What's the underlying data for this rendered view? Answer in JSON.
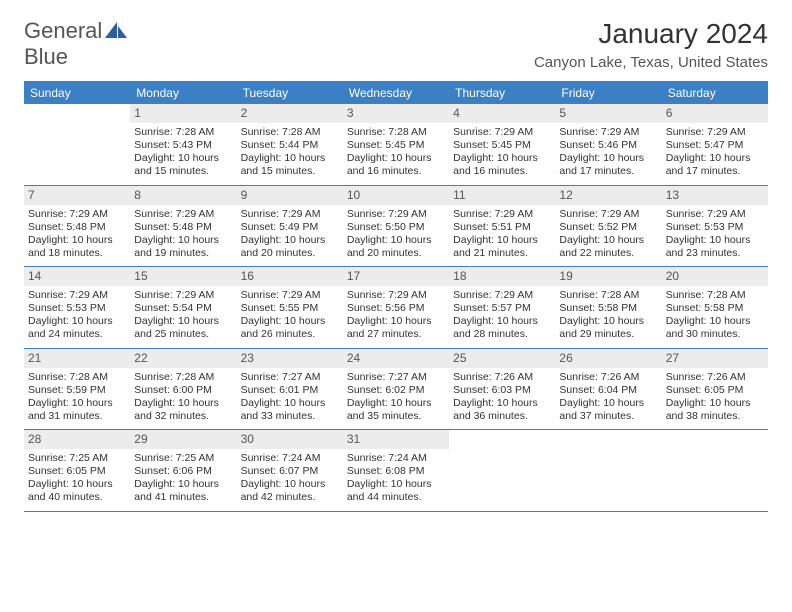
{
  "logo": {
    "text_a": "General",
    "text_b": "Blue"
  },
  "title": "January 2024",
  "location": "Canyon Lake, Texas, United States",
  "colors": {
    "header_bg": "#3b7fc4",
    "header_text": "#ffffff",
    "daynum_bg": "#ececec",
    "daynum_text": "#555555",
    "body_text": "#333333",
    "page_bg": "#ffffff"
  },
  "dow": [
    "Sunday",
    "Monday",
    "Tuesday",
    "Wednesday",
    "Thursday",
    "Friday",
    "Saturday"
  ],
  "weeks": [
    [
      null,
      {
        "n": "1",
        "l": [
          "Sunrise: 7:28 AM",
          "Sunset: 5:43 PM",
          "Daylight: 10 hours and 15 minutes."
        ]
      },
      {
        "n": "2",
        "l": [
          "Sunrise: 7:28 AM",
          "Sunset: 5:44 PM",
          "Daylight: 10 hours and 15 minutes."
        ]
      },
      {
        "n": "3",
        "l": [
          "Sunrise: 7:28 AM",
          "Sunset: 5:45 PM",
          "Daylight: 10 hours and 16 minutes."
        ]
      },
      {
        "n": "4",
        "l": [
          "Sunrise: 7:29 AM",
          "Sunset: 5:45 PM",
          "Daylight: 10 hours and 16 minutes."
        ]
      },
      {
        "n": "5",
        "l": [
          "Sunrise: 7:29 AM",
          "Sunset: 5:46 PM",
          "Daylight: 10 hours and 17 minutes."
        ]
      },
      {
        "n": "6",
        "l": [
          "Sunrise: 7:29 AM",
          "Sunset: 5:47 PM",
          "Daylight: 10 hours and 17 minutes."
        ]
      }
    ],
    [
      {
        "n": "7",
        "l": [
          "Sunrise: 7:29 AM",
          "Sunset: 5:48 PM",
          "Daylight: 10 hours and 18 minutes."
        ]
      },
      {
        "n": "8",
        "l": [
          "Sunrise: 7:29 AM",
          "Sunset: 5:48 PM",
          "Daylight: 10 hours and 19 minutes."
        ]
      },
      {
        "n": "9",
        "l": [
          "Sunrise: 7:29 AM",
          "Sunset: 5:49 PM",
          "Daylight: 10 hours and 20 minutes."
        ]
      },
      {
        "n": "10",
        "l": [
          "Sunrise: 7:29 AM",
          "Sunset: 5:50 PM",
          "Daylight: 10 hours and 20 minutes."
        ]
      },
      {
        "n": "11",
        "l": [
          "Sunrise: 7:29 AM",
          "Sunset: 5:51 PM",
          "Daylight: 10 hours and 21 minutes."
        ]
      },
      {
        "n": "12",
        "l": [
          "Sunrise: 7:29 AM",
          "Sunset: 5:52 PM",
          "Daylight: 10 hours and 22 minutes."
        ]
      },
      {
        "n": "13",
        "l": [
          "Sunrise: 7:29 AM",
          "Sunset: 5:53 PM",
          "Daylight: 10 hours and 23 minutes."
        ]
      }
    ],
    [
      {
        "n": "14",
        "l": [
          "Sunrise: 7:29 AM",
          "Sunset: 5:53 PM",
          "Daylight: 10 hours and 24 minutes."
        ]
      },
      {
        "n": "15",
        "l": [
          "Sunrise: 7:29 AM",
          "Sunset: 5:54 PM",
          "Daylight: 10 hours and 25 minutes."
        ]
      },
      {
        "n": "16",
        "l": [
          "Sunrise: 7:29 AM",
          "Sunset: 5:55 PM",
          "Daylight: 10 hours and 26 minutes."
        ]
      },
      {
        "n": "17",
        "l": [
          "Sunrise: 7:29 AM",
          "Sunset: 5:56 PM",
          "Daylight: 10 hours and 27 minutes."
        ]
      },
      {
        "n": "18",
        "l": [
          "Sunrise: 7:29 AM",
          "Sunset: 5:57 PM",
          "Daylight: 10 hours and 28 minutes."
        ]
      },
      {
        "n": "19",
        "l": [
          "Sunrise: 7:28 AM",
          "Sunset: 5:58 PM",
          "Daylight: 10 hours and 29 minutes."
        ]
      },
      {
        "n": "20",
        "l": [
          "Sunrise: 7:28 AM",
          "Sunset: 5:58 PM",
          "Daylight: 10 hours and 30 minutes."
        ]
      }
    ],
    [
      {
        "n": "21",
        "l": [
          "Sunrise: 7:28 AM",
          "Sunset: 5:59 PM",
          "Daylight: 10 hours and 31 minutes."
        ]
      },
      {
        "n": "22",
        "l": [
          "Sunrise: 7:28 AM",
          "Sunset: 6:00 PM",
          "Daylight: 10 hours and 32 minutes."
        ]
      },
      {
        "n": "23",
        "l": [
          "Sunrise: 7:27 AM",
          "Sunset: 6:01 PM",
          "Daylight: 10 hours and 33 minutes."
        ]
      },
      {
        "n": "24",
        "l": [
          "Sunrise: 7:27 AM",
          "Sunset: 6:02 PM",
          "Daylight: 10 hours and 35 minutes."
        ]
      },
      {
        "n": "25",
        "l": [
          "Sunrise: 7:26 AM",
          "Sunset: 6:03 PM",
          "Daylight: 10 hours and 36 minutes."
        ]
      },
      {
        "n": "26",
        "l": [
          "Sunrise: 7:26 AM",
          "Sunset: 6:04 PM",
          "Daylight: 10 hours and 37 minutes."
        ]
      },
      {
        "n": "27",
        "l": [
          "Sunrise: 7:26 AM",
          "Sunset: 6:05 PM",
          "Daylight: 10 hours and 38 minutes."
        ]
      }
    ],
    [
      {
        "n": "28",
        "l": [
          "Sunrise: 7:25 AM",
          "Sunset: 6:05 PM",
          "Daylight: 10 hours and 40 minutes."
        ]
      },
      {
        "n": "29",
        "l": [
          "Sunrise: 7:25 AM",
          "Sunset: 6:06 PM",
          "Daylight: 10 hours and 41 minutes."
        ]
      },
      {
        "n": "30",
        "l": [
          "Sunrise: 7:24 AM",
          "Sunset: 6:07 PM",
          "Daylight: 10 hours and 42 minutes."
        ]
      },
      {
        "n": "31",
        "l": [
          "Sunrise: 7:24 AM",
          "Sunset: 6:08 PM",
          "Daylight: 10 hours and 44 minutes."
        ]
      },
      null,
      null,
      null
    ]
  ]
}
